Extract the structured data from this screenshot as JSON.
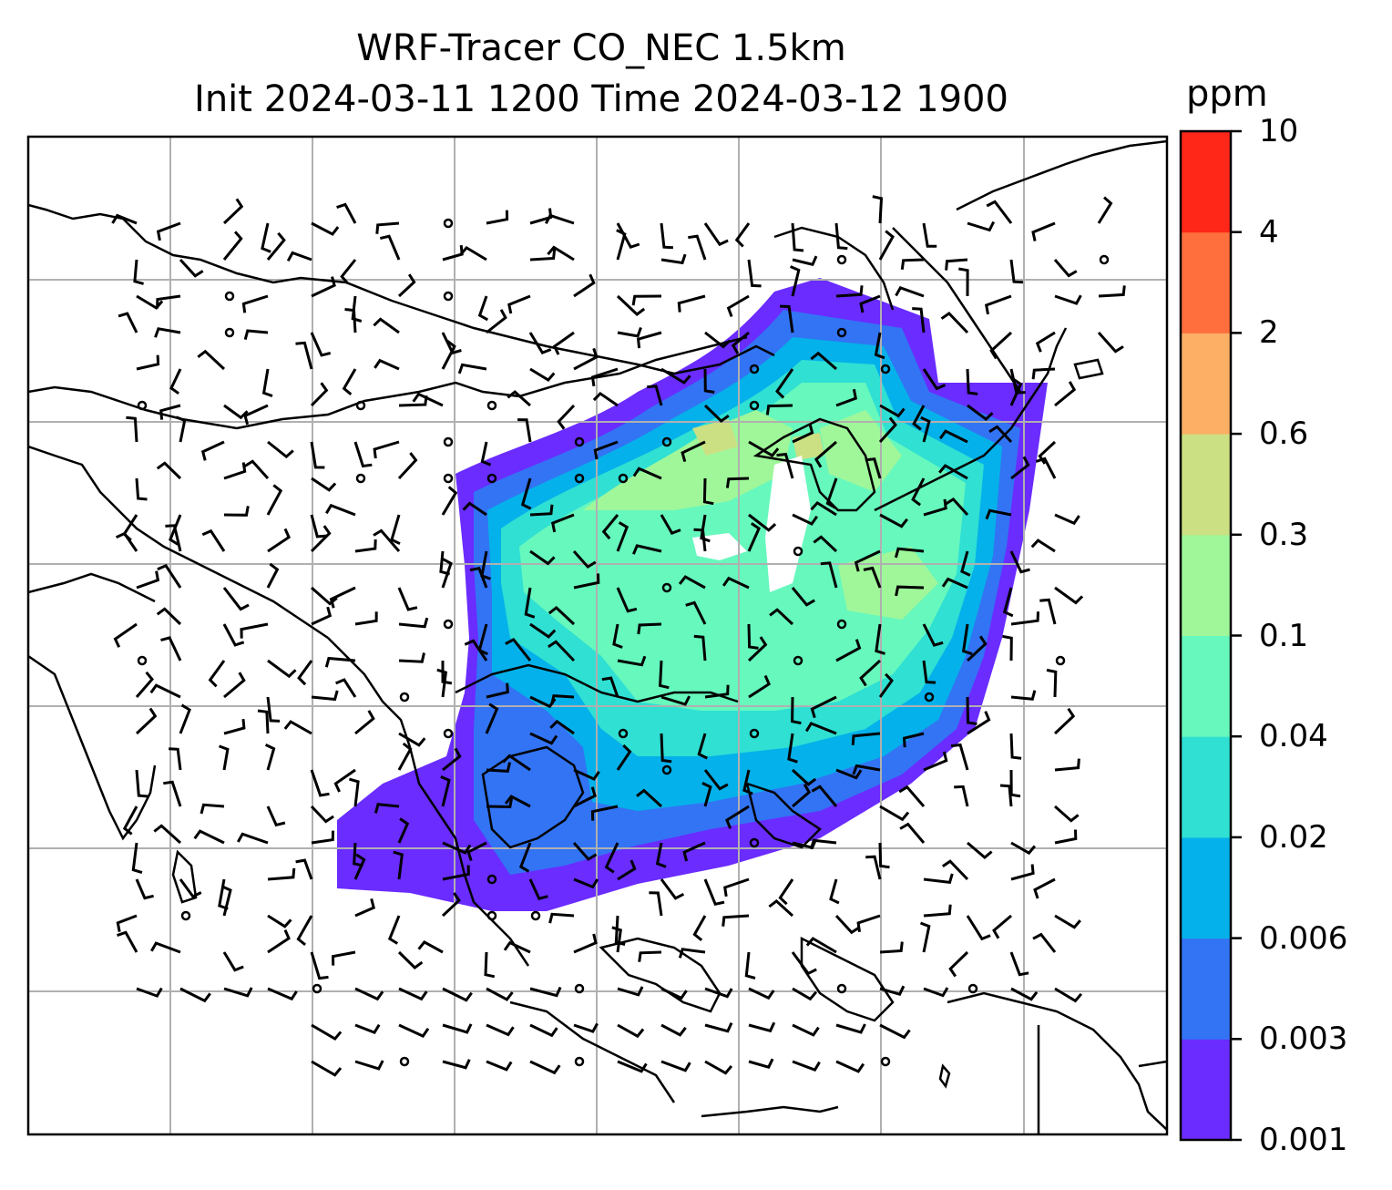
{
  "title_line1": "WRF-Tracer CO_NEC 1.5km",
  "title_line2": "Init 2024-03-11 1200 Time 2024-03-12 1900",
  "colorbar": {
    "unit": "ppm",
    "levels": [
      "0.001",
      "0.003",
      "0.006",
      "0.02",
      "0.04",
      "0.1",
      "0.3",
      "0.6",
      "2",
      "4",
      "10"
    ],
    "colors": [
      "#6a2cff",
      "#3274f4",
      "#05b1ea",
      "#2fe0d3",
      "#66f8bd",
      "#9ff79a",
      "#cbe082",
      "#fdb065",
      "#ff6f3d",
      "#ff2718"
    ]
  },
  "map": {
    "gridlines_color": "#b0b0b0",
    "coastline_color": "#000000",
    "wind_barb_color": "#000000",
    "field": "CO tracer concentration plume over East Asia with wind barbs"
  }
}
